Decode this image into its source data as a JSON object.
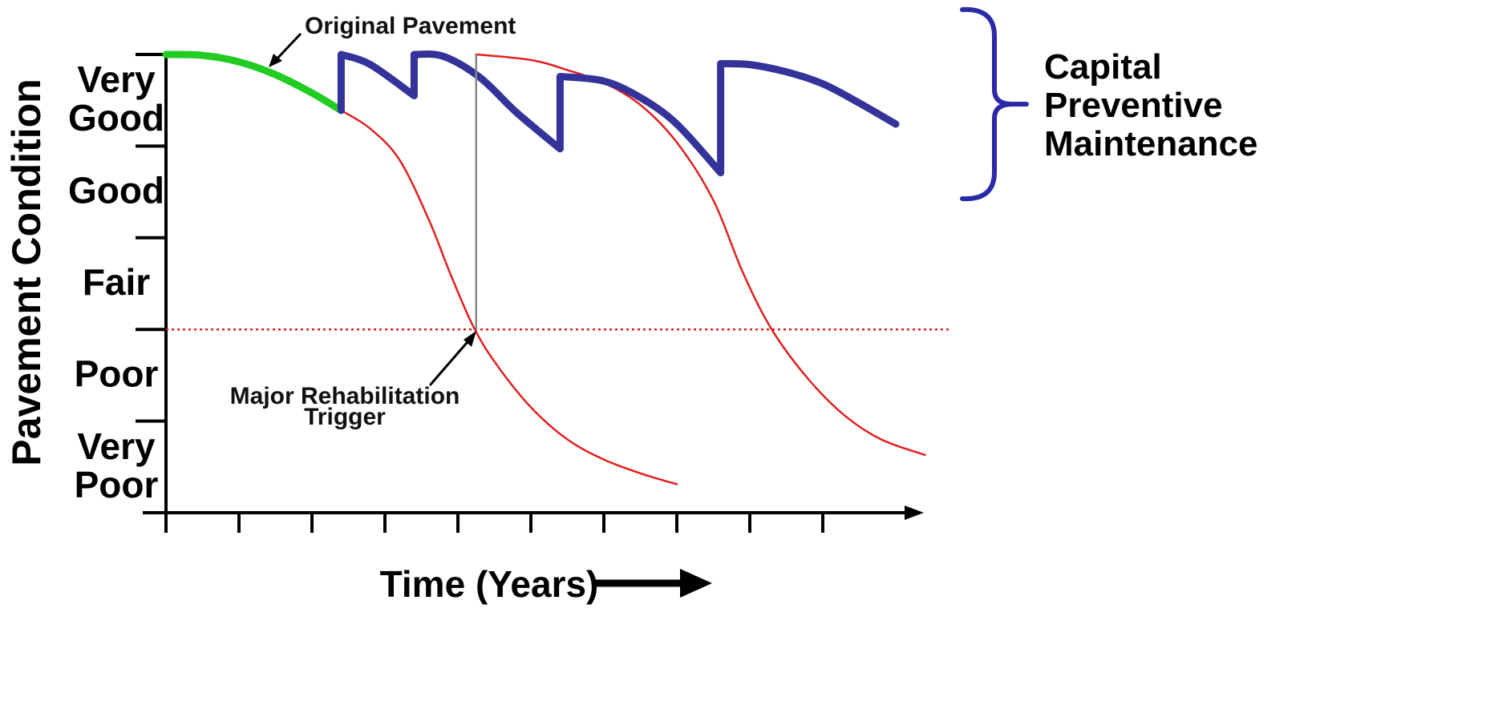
{
  "chart_data": {
    "type": "line",
    "ylabel": "Pavement Condition",
    "xlabel": "Time (Years)",
    "y_categories": [
      "Very Poor",
      "Poor",
      "Fair",
      "Good",
      "Very Good"
    ],
    "y_category_lines": [
      [
        "Very",
        "Poor"
      ],
      [
        "Poor"
      ],
      [
        "Fair"
      ],
      [
        "Good"
      ],
      [
        "Very",
        "Good"
      ]
    ],
    "y_range": [
      0,
      5
    ],
    "x_ticks": 10,
    "x_range": [
      0,
      10.4
    ],
    "rehab_threshold": 2,
    "series": [
      {
        "key": "original",
        "color": "#22cc22",
        "width": "thick",
        "points": [
          [
            0,
            5.0
          ],
          [
            0.5,
            4.99
          ],
          [
            1.0,
            4.92
          ],
          [
            1.5,
            4.78
          ],
          [
            2.0,
            4.58
          ],
          [
            2.4,
            4.39
          ]
        ]
      },
      {
        "key": "preventive",
        "color": "#333399",
        "width": "thick",
        "points": [
          [
            2.4,
            4.39
          ],
          [
            2.4,
            5.0
          ],
          [
            2.8,
            4.89
          ],
          [
            3.4,
            4.55
          ],
          [
            3.4,
            5.0
          ],
          [
            3.8,
            4.98
          ],
          [
            4.3,
            4.75
          ],
          [
            4.8,
            4.37
          ],
          [
            5.4,
            3.97
          ],
          [
            5.4,
            4.76
          ],
          [
            6.0,
            4.71
          ],
          [
            6.5,
            4.53
          ],
          [
            7.0,
            4.24
          ],
          [
            7.6,
            3.71
          ],
          [
            7.6,
            4.9
          ],
          [
            8.0,
            4.89
          ],
          [
            8.5,
            4.81
          ],
          [
            9.0,
            4.68
          ],
          [
            9.5,
            4.47
          ],
          [
            10.0,
            4.24
          ]
        ]
      },
      {
        "key": "no-maintenance",
        "color": "#e02020",
        "width": "thin",
        "points": [
          [
            2.4,
            4.39
          ],
          [
            2.8,
            4.19
          ],
          [
            3.2,
            3.85
          ],
          [
            3.6,
            3.2
          ],
          [
            3.9,
            2.6
          ],
          [
            4.2,
            2.05
          ],
          [
            4.5,
            1.65
          ],
          [
            5.0,
            1.15
          ],
          [
            5.5,
            0.8
          ],
          [
            6.0,
            0.58
          ],
          [
            6.5,
            0.43
          ],
          [
            7.0,
            0.31
          ]
        ]
      },
      {
        "key": "after-rehab",
        "color": "#e02020",
        "width": "thin",
        "points": [
          [
            4.25,
            5.0
          ],
          [
            5.0,
            4.94
          ],
          [
            5.5,
            4.83
          ],
          [
            6.0,
            4.69
          ],
          [
            6.5,
            4.45
          ],
          [
            7.0,
            4.04
          ],
          [
            7.5,
            3.41
          ],
          [
            7.9,
            2.63
          ],
          [
            8.3,
            2.0
          ],
          [
            8.8,
            1.46
          ],
          [
            9.3,
            1.06
          ],
          [
            9.8,
            0.8
          ],
          [
            10.4,
            0.63
          ]
        ]
      }
    ],
    "rehab_line": {
      "x": 4.25,
      "y_from": 2.0,
      "y_to": 5.0,
      "color": "#888888"
    },
    "threshold_color": "#e02020",
    "annotations": {
      "original": "Original Pavement",
      "rehab_line1": "Major Rehabilitation",
      "rehab_line2": "Trigger"
    },
    "bracket": {
      "label_lines": [
        "Capital",
        "Preventive",
        "Maintenance"
      ],
      "color": "#2a2aa8"
    }
  }
}
